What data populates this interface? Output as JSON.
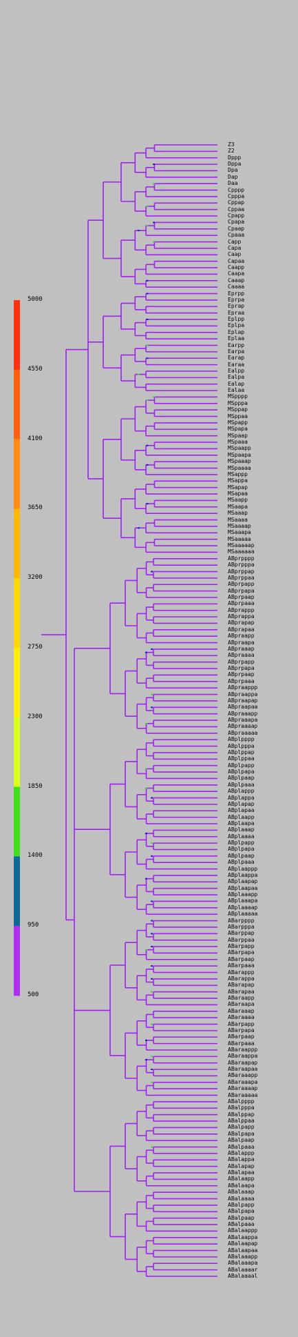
{
  "colorbar": {
    "ticks": [
      5000,
      4550,
      4100,
      3650,
      3200,
      2750,
      2300,
      1850,
      1400,
      950,
      500
    ],
    "bands": [
      "#ff3010",
      "#ff6010",
      "#ff8c10",
      "#ffb808",
      "#ffd808",
      "#ffee08",
      "#d8ff20",
      "#40e020",
      "#106898",
      "#b030f0"
    ]
  },
  "tree_colors": {
    "branch": "#a020f0",
    "mark_blue": "#1818d0",
    "mark_green": "#40d040",
    "mark_yellow": "#e0e040"
  },
  "leaves": [
    "Z3",
    "Z2",
    "Dppp",
    "Dppa",
    "Dpa",
    "Dap",
    "Daa",
    "Cpppp",
    "Cpppa",
    "Cppap",
    "Cppaa",
    "Cpapp",
    "Cpapa",
    "Cpaap",
    "Cpaaa",
    "Capp",
    "Capa",
    "Caap",
    "Capaa",
    "Caapp",
    "Caapa",
    "Caaap",
    "Caaaa",
    "Eprpp",
    "Eprpa",
    "Eprap",
    "Epraa",
    "Eplpp",
    "Eplpa",
    "Eplap",
    "Eplaa",
    "Earpp",
    "Earpa",
    "Earap",
    "Earaa",
    "Ealpp",
    "Ealpa",
    "Ealap",
    "Ealaa",
    "MSpppp",
    "MSpppa",
    "MSppap",
    "MSppaa",
    "MSpapp",
    "MSpapa",
    "MSpaap",
    "MSpaaa",
    "MSpaapp",
    "MSpaapa",
    "MSpaaap",
    "MSpaaaa",
    "MSappp",
    "MSappa",
    "MSapap",
    "MSapaa",
    "MSaapp",
    "MSaapa",
    "MSaaap",
    "MSaaaa",
    "MSaaaap",
    "MSaaapa",
    "MSaaaaa",
    "MSaaaaap",
    "MSaaaaaa",
    "ABprpppp",
    "ABprpppa",
    "ABprppap",
    "ABprppaa",
    "ABprpapp",
    "ABprpapa",
    "ABprpaap",
    "ABprpaaa",
    "ABprappp",
    "ABprappa",
    "ABprapap",
    "ABprapaa",
    "ABpraapp",
    "ABpraapa",
    "ABpraaap",
    "ABpraaaa",
    "ABprpapp",
    "ABprpapa",
    "ABprpaap",
    "ABprpaaa",
    "ABpraappp",
    "ABpraappa",
    "ABpraapap",
    "ABpraapaa",
    "ABpraaapp",
    "ABpraaapa",
    "ABpraaaap",
    "ABpraaaaa",
    "ABplpppp",
    "ABplpppa",
    "ABplppap",
    "ABplppaa",
    "ABplpapp",
    "ABplpapa",
    "ABplpaap",
    "ABplpaaa",
    "ABplappp",
    "ABplappa",
    "ABplapap",
    "ABplapaa",
    "ABplaapp",
    "ABplaapa",
    "ABplaaap",
    "ABplaaaa",
    "ABplpapp",
    "ABplpapa",
    "ABplpaap",
    "ABplpaaa",
    "ABplaappp",
    "ABplaappa",
    "ABplaapap",
    "ABplaapaa",
    "ABplaaapp",
    "ABplaaapa",
    "ABplaaaap",
    "ABplaaaaa",
    "ABarpppp",
    "ABarpppa",
    "ABarppap",
    "ABarppaa",
    "ABarpapp",
    "ABarpapa",
    "ABarpaap",
    "ABarpaaa",
    "ABarappp",
    "ABarappa",
    "ABarapap",
    "ABarapaa",
    "ABaraapp",
    "ABaraapa",
    "ABaraaap",
    "ABaraaaa",
    "ABarpapp",
    "ABarpapa",
    "ABarpaap",
    "ABarpaaa",
    "ABaraappp",
    "ABaraappa",
    "ABaraapap",
    "ABaraapaa",
    "ABaraaapp",
    "ABaraaapa",
    "ABaraaaap",
    "ABaraaaaa",
    "ABalpppp",
    "ABalpppa",
    "ABalppap",
    "ABalppaa",
    "ABalpapp",
    "ABalpapa",
    "ABalpaap",
    "ABalpaaa",
    "ABalappp",
    "ABalappa",
    "ABalapap",
    "ABalapaa",
    "ABalaapp",
    "ABalaapa",
    "ABalaaap",
    "ABalaaaa",
    "ABalpapp",
    "ABalpapa",
    "ABalpaap",
    "ABalpaaa",
    "ABalaappp",
    "ABalaappa",
    "ABalaapap",
    "ABalaapaa",
    "ABalaaapp",
    "ABalaaapa",
    "ABalaaaar",
    "ABalaaaal"
  ]
}
